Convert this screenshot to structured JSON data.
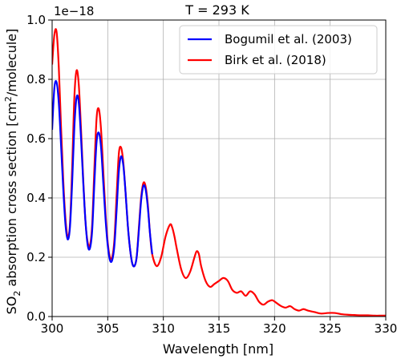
{
  "chart_data": {
    "type": "line",
    "title": "T = 293 K",
    "xlabel": "Wavelength [nm]",
    "ylabel_main": "SO",
    "ylabel_sub": "2",
    "ylabel_rest": " absorption cross section [cm",
    "ylabel_sup": "2",
    "ylabel_tail": "/molecule]",
    "offset_text": "1e−18",
    "xlim": [
      300,
      330
    ],
    "ylim": [
      0.0,
      1.0
    ],
    "xticks": [
      "300",
      "305",
      "310",
      "315",
      "320",
      "325",
      "330"
    ],
    "yticks": [
      "0.0",
      "0.2",
      "0.4",
      "0.6",
      "0.8",
      "1.0"
    ],
    "grid": true,
    "legend_position": "top-right",
    "series": [
      {
        "name": "Bogumil et al. (2003)",
        "color": "#0000ff",
        "x": [
          300.0,
          300.2,
          300.4,
          300.6,
          300.8,
          301.0,
          301.2,
          301.4,
          301.6,
          301.8,
          302.0,
          302.2,
          302.4,
          302.6,
          302.8,
          303.0,
          303.2,
          303.4,
          303.6,
          303.8,
          304.0,
          304.2,
          304.4,
          304.6,
          304.8,
          305.0,
          305.2,
          305.4,
          305.6,
          305.8,
          306.0,
          306.2,
          306.4,
          306.6,
          306.8,
          307.0,
          307.2,
          307.4,
          307.6,
          307.8,
          308.0,
          308.2,
          308.4,
          308.6,
          308.8,
          309.0
        ],
        "y": [
          0.63,
          0.77,
          0.79,
          0.72,
          0.58,
          0.43,
          0.31,
          0.26,
          0.3,
          0.45,
          0.64,
          0.74,
          0.72,
          0.6,
          0.45,
          0.32,
          0.24,
          0.23,
          0.29,
          0.45,
          0.59,
          0.62,
          0.57,
          0.45,
          0.33,
          0.24,
          0.19,
          0.19,
          0.24,
          0.36,
          0.49,
          0.54,
          0.51,
          0.42,
          0.31,
          0.23,
          0.18,
          0.17,
          0.2,
          0.29,
          0.39,
          0.44,
          0.43,
          0.37,
          0.28,
          0.21
        ]
      },
      {
        "name": "Birk et al. (2018)",
        "color": "#ff0000",
        "x": [
          300.0,
          300.2,
          300.4,
          300.6,
          300.8,
          301.0,
          301.2,
          301.4,
          301.6,
          301.8,
          302.0,
          302.2,
          302.4,
          302.6,
          302.8,
          303.0,
          303.2,
          303.4,
          303.6,
          303.8,
          304.0,
          304.2,
          304.4,
          304.6,
          304.8,
          305.0,
          305.2,
          305.4,
          305.6,
          305.8,
          306.0,
          306.2,
          306.4,
          306.6,
          306.8,
          307.0,
          307.2,
          307.4,
          307.6,
          307.8,
          308.0,
          308.2,
          308.4,
          308.6,
          308.8,
          309.0,
          309.4,
          309.8,
          310.2,
          310.6,
          310.8,
          311.0,
          311.2,
          311.6,
          312.0,
          312.4,
          312.8,
          313.0,
          313.2,
          313.4,
          313.8,
          314.2,
          314.6,
          315.0,
          315.4,
          315.8,
          316.2,
          316.6,
          317.0,
          317.4,
          317.8,
          318.2,
          318.6,
          319.0,
          319.4,
          319.8,
          320.2,
          320.6,
          321.0,
          321.4,
          321.8,
          322.2,
          322.6,
          323.0,
          323.6,
          324.2,
          324.8,
          325.4,
          326.0,
          326.6,
          327.2,
          327.8,
          328.4,
          329.0,
          329.6,
          330.0
        ],
        "y": [
          0.85,
          0.95,
          0.96,
          0.84,
          0.64,
          0.46,
          0.33,
          0.27,
          0.31,
          0.5,
          0.74,
          0.83,
          0.78,
          0.63,
          0.46,
          0.32,
          0.25,
          0.24,
          0.31,
          0.5,
          0.67,
          0.7,
          0.63,
          0.49,
          0.35,
          0.25,
          0.2,
          0.2,
          0.26,
          0.41,
          0.55,
          0.57,
          0.52,
          0.42,
          0.31,
          0.23,
          0.18,
          0.17,
          0.2,
          0.3,
          0.4,
          0.45,
          0.44,
          0.38,
          0.28,
          0.21,
          0.17,
          0.2,
          0.27,
          0.31,
          0.3,
          0.27,
          0.23,
          0.16,
          0.13,
          0.15,
          0.2,
          0.22,
          0.21,
          0.17,
          0.12,
          0.1,
          0.11,
          0.12,
          0.13,
          0.12,
          0.09,
          0.08,
          0.085,
          0.07,
          0.085,
          0.075,
          0.05,
          0.04,
          0.05,
          0.055,
          0.045,
          0.035,
          0.03,
          0.035,
          0.025,
          0.02,
          0.025,
          0.02,
          0.015,
          0.01,
          0.012,
          0.012,
          0.008,
          0.006,
          0.005,
          0.004,
          0.004,
          0.003,
          0.003,
          0.003
        ]
      }
    ]
  }
}
